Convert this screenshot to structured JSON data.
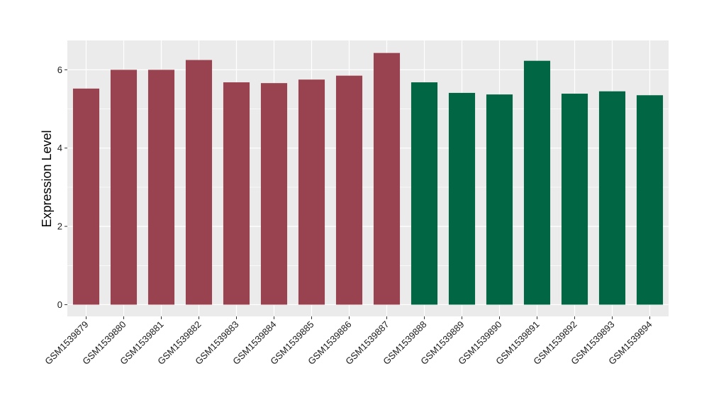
{
  "chart_data": {
    "type": "bar",
    "ylabel": "Expression Level",
    "xlabel": "",
    "title": "",
    "ylim": [
      -0.3,
      6.75
    ],
    "yticks": [
      0,
      2,
      4,
      6
    ],
    "ytick_labels": [
      "0",
      "2",
      "4",
      "6"
    ],
    "grid": true,
    "legend": "none",
    "categories": [
      "GSM1539879",
      "GSM1539880",
      "GSM1539881",
      "GSM1539882",
      "GSM1539883",
      "GSM1539884",
      "GSM1539885",
      "GSM1539886",
      "GSM1539887",
      "GSM1539888",
      "GSM1539889",
      "GSM1539890",
      "GSM1539891",
      "GSM1539892",
      "GSM1539893",
      "GSM1539894"
    ],
    "values": [
      5.52,
      6.0,
      6.0,
      6.25,
      5.68,
      5.66,
      5.75,
      5.85,
      6.43,
      5.68,
      5.41,
      5.37,
      6.23,
      5.39,
      5.45,
      5.35
    ],
    "bar_colors": [
      "#9a4350",
      "#9a4350",
      "#9a4350",
      "#9a4350",
      "#9a4350",
      "#9a4350",
      "#9a4350",
      "#9a4350",
      "#9a4350",
      "#006644",
      "#006644",
      "#006644",
      "#006644",
      "#006644",
      "#006644",
      "#006644"
    ],
    "panel_background": "#ebebeb",
    "grid_color": "#ffffff"
  }
}
